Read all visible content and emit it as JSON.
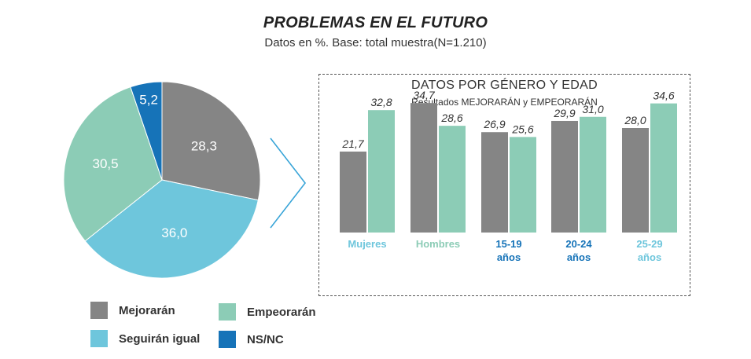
{
  "title": "PROBLEMAS EN EL FUTURO",
  "subtitle": "Datos en %. Base: total muestra(N=1.210)",
  "colors": {
    "mejoraran": "#858585",
    "empeoraran": "#8cccb6",
    "seguiran_igual": "#6ec6dc",
    "nsnc": "#1673b8",
    "label_light": "#6ec6dc",
    "label_green": "#8cccb6",
    "label_blue": "#1673b8"
  },
  "legend": [
    {
      "label": "Mejorarán",
      "color": "#858585"
    },
    {
      "label": "Empeorarán",
      "color": "#8cccb6"
    },
    {
      "label": "Seguirán igual",
      "color": "#6ec6dc"
    },
    {
      "label": "NS/NC",
      "color": "#1673b8"
    }
  ],
  "panel": {
    "title": "DATOS POR GÉNERO Y EDAD",
    "subtitle": "Resultados MEJORARÁN y EMPEORARÁN"
  },
  "chart_data": [
    {
      "type": "pie",
      "slices": [
        {
          "name": "Mejorarán",
          "value": 28.3,
          "label": "28,3",
          "color": "#858585"
        },
        {
          "name": "Seguirán igual",
          "value": 36.0,
          "label": "36,0",
          "color": "#6ec6dc"
        },
        {
          "name": "Empeorarán",
          "value": 30.5,
          "label": "30,5",
          "color": "#8cccb6"
        },
        {
          "name": "NS/NC",
          "value": 5.2,
          "label": "5,2",
          "color": "#1673b8"
        }
      ]
    },
    {
      "type": "bar",
      "title": "DATOS POR GÉNERO Y EDAD",
      "categories": [
        {
          "lines": [
            "Mujeres"
          ],
          "color": "#6ec6dc"
        },
        {
          "lines": [
            "Hombres"
          ],
          "color": "#8cccb6"
        },
        {
          "lines": [
            "15-19",
            "años"
          ],
          "color": "#1673b8"
        },
        {
          "lines": [
            "20-24",
            "años"
          ],
          "color": "#1673b8"
        },
        {
          "lines": [
            "25-29",
            "años"
          ],
          "color": "#6ec6dc"
        }
      ],
      "series": [
        {
          "name": "Mejorarán",
          "color": "#858585",
          "values": [
            21.7,
            34.7,
            26.9,
            29.9,
            28.0
          ],
          "labels": [
            "21,7",
            "34,7",
            "26,9",
            "29,9",
            "28,0"
          ]
        },
        {
          "name": "Empeorarán",
          "color": "#8cccb6",
          "values": [
            32.8,
            28.6,
            25.6,
            31.0,
            34.6
          ],
          "labels": [
            "32,8",
            "28,6",
            "25,6",
            "31,0",
            "34,6"
          ]
        }
      ],
      "ylim": [
        0,
        40
      ]
    }
  ]
}
